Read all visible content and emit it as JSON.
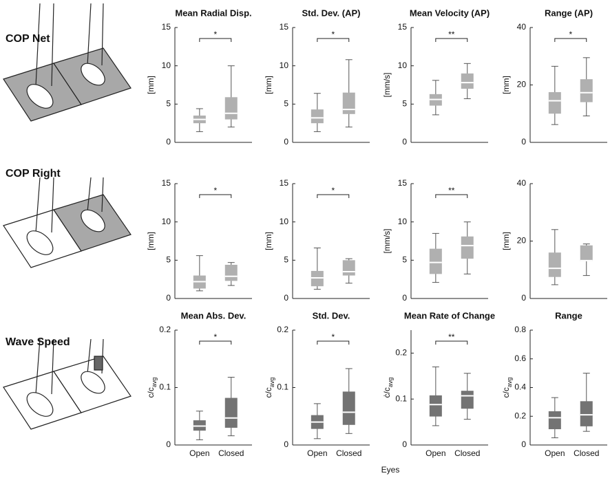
{
  "rows": [
    "COP Net",
    "COP Right",
    "Wave Speed"
  ],
  "xlabel": "Eyes",
  "chart_data": [
    {
      "type": "box",
      "title": "Mean Radial Disp.",
      "ylabel": "[mm]",
      "categories": [
        null,
        null
      ],
      "color": "#b0b0b0",
      "ylim": [
        0,
        15
      ],
      "yticks": [
        0,
        5,
        10,
        15
      ],
      "significance": "*",
      "boxes": [
        {
          "low": 1.4,
          "q1": 2.5,
          "median": 3.0,
          "q3": 3.5,
          "high": 4.4
        },
        {
          "low": 2.0,
          "q1": 3.0,
          "median": 3.8,
          "q3": 5.9,
          "high": 10.0
        }
      ]
    },
    {
      "type": "box",
      "title": "Std. Dev. (AP)",
      "ylabel": "[mm]",
      "categories": [
        null,
        null
      ],
      "color": "#b0b0b0",
      "ylim": [
        0,
        15
      ],
      "yticks": [
        0,
        5,
        10,
        15
      ],
      "significance": "*",
      "boxes": [
        {
          "low": 1.4,
          "q1": 2.5,
          "median": 3.2,
          "q3": 4.3,
          "high": 6.4
        },
        {
          "low": 2.0,
          "q1": 3.7,
          "median": 4.3,
          "q3": 6.5,
          "high": 10.8
        }
      ]
    },
    {
      "type": "box",
      "title": "Mean Velocity (AP)",
      "ylabel": "[mm/s]",
      "categories": [
        null,
        null
      ],
      "color": "#b0b0b0",
      "ylim": [
        0,
        15
      ],
      "yticks": [
        0,
        5,
        10,
        15
      ],
      "significance": "**",
      "boxes": [
        {
          "low": 3.6,
          "q1": 4.8,
          "median": 5.6,
          "q3": 6.3,
          "high": 8.1
        },
        {
          "low": 5.7,
          "q1": 7.0,
          "median": 7.8,
          "q3": 9.0,
          "high": 10.3
        }
      ]
    },
    {
      "type": "box",
      "title": "Range (AP)",
      "ylabel": "[mm]",
      "categories": [
        null,
        null
      ],
      "color": "#b0b0b0",
      "ylim": [
        0,
        40
      ],
      "yticks": [
        0,
        20,
        40
      ],
      "significance": "*",
      "boxes": [
        {
          "low": 6.2,
          "q1": 10,
          "median": 14.5,
          "q3": 17.5,
          "high": 26.5
        },
        {
          "low": 9.2,
          "q1": 14,
          "median": 17.3,
          "q3": 22,
          "high": 29.5
        }
      ]
    },
    {
      "type": "box",
      "ylabel": "[mm]",
      "categories": [
        null,
        null
      ],
      "color": "#b0b0b0",
      "ylim": [
        0,
        15
      ],
      "yticks": [
        0,
        5,
        10,
        15
      ],
      "significance": "*",
      "boxes": [
        {
          "low": 1.0,
          "q1": 1.3,
          "median": 2.2,
          "q3": 3.0,
          "high": 5.6
        },
        {
          "low": 1.7,
          "q1": 2.3,
          "median": 2.9,
          "q3": 4.4,
          "high": 4.7
        }
      ]
    },
    {
      "type": "box",
      "ylabel": "[mm]",
      "categories": [
        null,
        null
      ],
      "color": "#b0b0b0",
      "ylim": [
        0,
        15
      ],
      "yticks": [
        0,
        5,
        10,
        15
      ],
      "significance": "*",
      "boxes": [
        {
          "low": 1.2,
          "q1": 1.6,
          "median": 2.7,
          "q3": 3.6,
          "high": 6.6
        },
        {
          "low": 2.0,
          "q1": 3.0,
          "median": 3.5,
          "q3": 5.0,
          "high": 5.2
        }
      ]
    },
    {
      "type": "box",
      "ylabel": "[mm/s]",
      "categories": [
        null,
        null
      ],
      "color": "#b0b0b0",
      "ylim": [
        0,
        15
      ],
      "yticks": [
        0,
        5,
        10,
        15
      ],
      "significance": "**",
      "boxes": [
        {
          "low": 2.1,
          "q1": 3.2,
          "median": 4.7,
          "q3": 6.5,
          "high": 8.5
        },
        {
          "low": 3.2,
          "q1": 5.2,
          "median": 6.9,
          "q3": 8.1,
          "high": 10.0
        }
      ]
    },
    {
      "type": "box",
      "ylabel": "[mm]",
      "categories": [
        null,
        null
      ],
      "color": "#b0b0b0",
      "ylim": [
        0,
        40
      ],
      "yticks": [
        0,
        20,
        40
      ],
      "boxes": [
        {
          "low": 4.8,
          "q1": 7.5,
          "median": 10.5,
          "q3": 16,
          "high": 24
        },
        {
          "low": 8,
          "q1": 13,
          "median": 13.2,
          "q3": 18.5,
          "high": 19
        }
      ]
    },
    {
      "type": "box",
      "title": "Mean Abs. Dev.",
      "ylabel": [
        "c/c",
        "avg"
      ],
      "categories": [
        "Open",
        "Closed"
      ],
      "color": "#737373",
      "ylim": [
        0,
        0.2
      ],
      "yticks": [
        0,
        0.1,
        0.2
      ],
      "significance": "*",
      "boxes": [
        {
          "low": 0.009,
          "q1": 0.025,
          "median": 0.033,
          "q3": 0.043,
          "high": 0.059
        },
        {
          "low": 0.016,
          "q1": 0.03,
          "median": 0.047,
          "q3": 0.082,
          "high": 0.118
        }
      ]
    },
    {
      "type": "box",
      "title": "Std. Dev.",
      "ylabel": [
        "c/c",
        "avg"
      ],
      "categories": [
        "Open",
        "Closed"
      ],
      "color": "#737373",
      "ylim": [
        0,
        0.2
      ],
      "yticks": [
        0,
        0.1,
        0.2
      ],
      "significance": "*",
      "boxes": [
        {
          "low": 0.011,
          "q1": 0.028,
          "median": 0.04,
          "q3": 0.052,
          "high": 0.072
        },
        {
          "low": 0.02,
          "q1": 0.035,
          "median": 0.057,
          "q3": 0.093,
          "high": 0.133
        }
      ]
    },
    {
      "type": "box",
      "title": "Mean Rate of Change",
      "ylabel": [
        "ċ/c",
        "avg"
      ],
      "categories": [
        "Open",
        "Closed"
      ],
      "color": "#737373",
      "ylim": [
        0,
        0.25
      ],
      "yticks": [
        0,
        0.1,
        0.2
      ],
      "significance": "**",
      "boxes": [
        {
          "low": 0.042,
          "q1": 0.062,
          "median": 0.088,
          "q3": 0.108,
          "high": 0.17
        },
        {
          "low": 0.056,
          "q1": 0.079,
          "median": 0.107,
          "q3": 0.118,
          "high": 0.156
        }
      ]
    },
    {
      "type": "box",
      "title": "Range",
      "ylabel": [
        "c/c",
        "avg"
      ],
      "categories": [
        "Open",
        "Closed"
      ],
      "color": "#737373",
      "ylim": [
        0,
        0.8
      ],
      "yticks": [
        0,
        0.2,
        0.4,
        0.6,
        0.8
      ],
      "boxes": [
        {
          "low": 0.05,
          "q1": 0.11,
          "median": 0.19,
          "q3": 0.235,
          "high": 0.33
        },
        {
          "low": 0.095,
          "q1": 0.13,
          "median": 0.21,
          "q3": 0.305,
          "high": 0.5
        }
      ]
    }
  ]
}
